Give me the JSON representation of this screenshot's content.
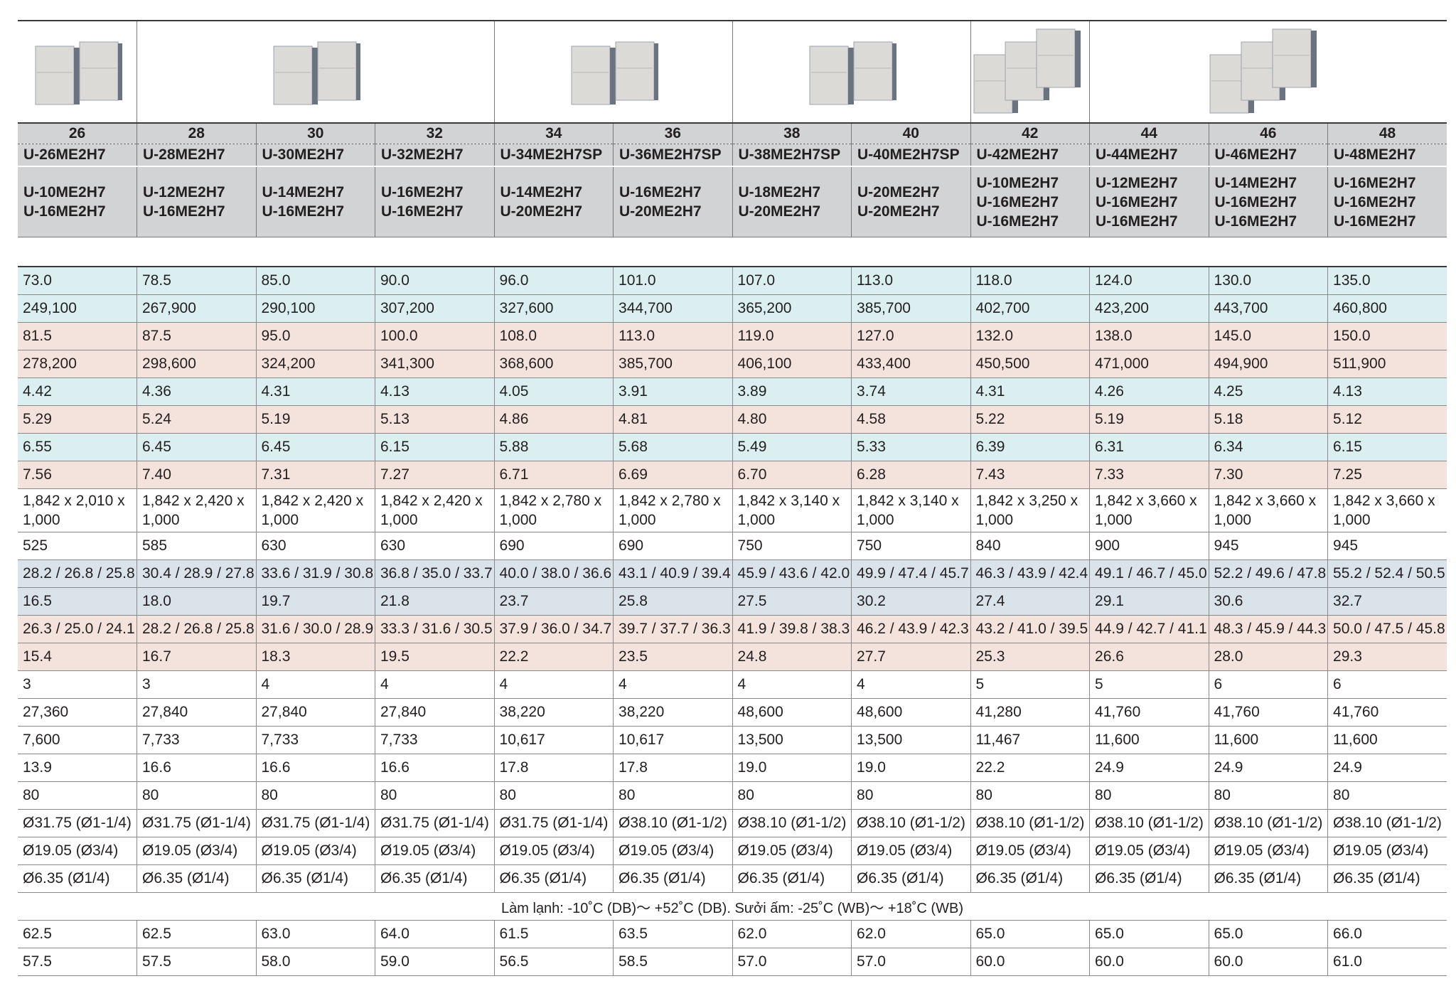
{
  "hp_headers": [
    "26",
    "28",
    "30",
    "32",
    "34",
    "36",
    "38",
    "40",
    "42",
    "44",
    "46",
    "48"
  ],
  "model_names": [
    "U-26ME2H7",
    "U-28ME2H7",
    "U-30ME2H7",
    "U-32ME2H7",
    "U-34ME2H7SP",
    "U-36ME2H7SP",
    "U-38ME2H7SP",
    "U-40ME2H7SP",
    "U-42ME2H7",
    "U-44ME2H7",
    "U-46ME2H7",
    "U-48ME2H7"
  ],
  "combinations": [
    [
      "U-10ME2H7",
      "U-16ME2H7"
    ],
    [
      "U-12ME2H7",
      "U-16ME2H7"
    ],
    [
      "U-14ME2H7",
      "U-16ME2H7"
    ],
    [
      "U-16ME2H7",
      "U-16ME2H7"
    ],
    [
      "U-14ME2H7",
      "U-20ME2H7"
    ],
    [
      "U-16ME2H7",
      "U-20ME2H7"
    ],
    [
      "U-18ME2H7",
      "U-20ME2H7"
    ],
    [
      "U-20ME2H7",
      "U-20ME2H7"
    ],
    [
      "U-10ME2H7",
      "U-16ME2H7",
      "U-16ME2H7"
    ],
    [
      "U-12ME2H7",
      "U-16ME2H7",
      "U-16ME2H7"
    ],
    [
      "U-14ME2H7",
      "U-16ME2H7",
      "U-16ME2H7"
    ],
    [
      "U-16ME2H7",
      "U-16ME2H7",
      "U-16ME2H7"
    ]
  ],
  "image_groups": [
    {
      "span": 1,
      "units": 2
    },
    {
      "span": 3,
      "units": 2
    },
    {
      "span": 2,
      "units": 2
    },
    {
      "span": 2,
      "units": 2
    },
    {
      "span": 1,
      "units": 3
    },
    {
      "span": 3,
      "units": 3
    }
  ],
  "colors": {
    "cooling": "#dbeff0",
    "heating": "#f3e3dc",
    "steel": "#dbe3ea",
    "header": "#d1d3d4",
    "unit_body": "#dcdad6",
    "unit_side": "#6b7280"
  },
  "rows": [
    {
      "style": "cool",
      "values": [
        "73.0",
        "78.5",
        "85.0",
        "90.0",
        "96.0",
        "101.0",
        "107.0",
        "113.0",
        "118.0",
        "124.0",
        "130.0",
        "135.0"
      ]
    },
    {
      "style": "cool",
      "values": [
        "249,100",
        "267,900",
        "290,100",
        "307,200",
        "327,600",
        "344,700",
        "365,200",
        "385,700",
        "402,700",
        "423,200",
        "443,700",
        "460,800"
      ]
    },
    {
      "style": "heat",
      "values": [
        "81.5",
        "87.5",
        "95.0",
        "100.0",
        "108.0",
        "113.0",
        "119.0",
        "127.0",
        "132.0",
        "138.0",
        "145.0",
        "150.0"
      ]
    },
    {
      "style": "heat",
      "values": [
        "278,200",
        "298,600",
        "324,200",
        "341,300",
        "368,600",
        "385,700",
        "406,100",
        "433,400",
        "450,500",
        "471,000",
        "494,900",
        "511,900"
      ]
    },
    {
      "style": "cool",
      "values": [
        "4.42",
        "4.36",
        "4.31",
        "4.13",
        "4.05",
        "3.91",
        "3.89",
        "3.74",
        "4.31",
        "4.26",
        "4.25",
        "4.13"
      ]
    },
    {
      "style": "heat",
      "values": [
        "5.29",
        "5.24",
        "5.19",
        "5.13",
        "4.86",
        "4.81",
        "4.80",
        "4.58",
        "5.22",
        "5.19",
        "5.18",
        "5.12"
      ]
    },
    {
      "style": "cool",
      "values": [
        "6.55",
        "6.45",
        "6.45",
        "6.15",
        "5.88",
        "5.68",
        "5.49",
        "5.33",
        "6.39",
        "6.31",
        "6.34",
        "6.15"
      ]
    },
    {
      "style": "heat",
      "values": [
        "7.56",
        "7.40",
        "7.31",
        "7.27",
        "6.71",
        "6.69",
        "6.70",
        "6.28",
        "7.43",
        "7.33",
        "7.30",
        "7.25"
      ]
    },
    {
      "style": "plain",
      "tall": true,
      "values": [
        "1,842 x 2,010 x 1,000",
        "1,842 x 2,420 x 1,000",
        "1,842 x 2,420 x 1,000",
        "1,842 x 2,420 x 1,000",
        "1,842 x 2,780 x 1,000",
        "1,842 x 2,780 x 1,000",
        "1,842 x 3,140 x 1,000",
        "1,842 x 3,140 x 1,000",
        "1,842 x 3,250 x 1,000",
        "1,842 x 3,660 x 1,000",
        "1,842 x 3,660 x 1,000",
        "1,842 x 3,660 x 1,000"
      ]
    },
    {
      "style": "plain",
      "values": [
        "525",
        "585",
        "630",
        "630",
        "690",
        "690",
        "750",
        "750",
        "840",
        "900",
        "945",
        "945"
      ]
    },
    {
      "style": "steel",
      "values": [
        "28.2 / 26.8 / 25.8",
        "30.4 / 28.9 / 27.8",
        "33.6 / 31.9 / 30.8",
        "36.8 / 35.0 / 33.7",
        "40.0 / 38.0 / 36.6",
        "43.1 / 40.9 / 39.4",
        "45.9 / 43.6 / 42.0",
        "49.9 / 47.4 / 45.7",
        "46.3 / 43.9 / 42.4",
        "49.1 / 46.7 / 45.0",
        "52.2 / 49.6 / 47.8",
        "55.2 / 52.4 / 50.5"
      ]
    },
    {
      "style": "steel",
      "values": [
        "16.5",
        "18.0",
        "19.7",
        "21.8",
        "23.7",
        "25.8",
        "27.5",
        "30.2",
        "27.4",
        "29.1",
        "30.6",
        "32.7"
      ]
    },
    {
      "style": "heat",
      "values": [
        "26.3 / 25.0 / 24.1",
        "28.2 / 26.8 / 25.8",
        "31.6 / 30.0 / 28.9",
        "33.3 / 31.6 / 30.5",
        "37.9 / 36.0 / 34.7",
        "39.7 / 37.7 / 36.3",
        "41.9 / 39.8 / 38.3",
        "46.2 / 43.9 / 42.3",
        "43.2 / 41.0 / 39.5",
        "44.9 / 42.7 / 41.1",
        "48.3 / 45.9 / 44.3",
        "50.0 / 47.5 / 45.8"
      ]
    },
    {
      "style": "heat",
      "values": [
        "15.4",
        "16.7",
        "18.3",
        "19.5",
        "22.2",
        "23.5",
        "24.8",
        "27.7",
        "25.3",
        "26.6",
        "28.0",
        "29.3"
      ]
    },
    {
      "style": "plain",
      "values": [
        "3",
        "3",
        "4",
        "4",
        "4",
        "4",
        "4",
        "4",
        "5",
        "5",
        "6",
        "6"
      ]
    },
    {
      "style": "plain",
      "values": [
        "27,360",
        "27,840",
        "27,840",
        "27,840",
        "38,220",
        "38,220",
        "48,600",
        "48,600",
        "41,280",
        "41,760",
        "41,760",
        "41,760"
      ]
    },
    {
      "style": "plain",
      "values": [
        "7,600",
        "7,733",
        "7,733",
        "7,733",
        "10,617",
        "10,617",
        "13,500",
        "13,500",
        "11,467",
        "11,600",
        "11,600",
        "11,600"
      ]
    },
    {
      "style": "plain",
      "values": [
        "13.9",
        "16.6",
        "16.6",
        "16.6",
        "17.8",
        "17.8",
        "19.0",
        "19.0",
        "22.2",
        "24.9",
        "24.9",
        "24.9"
      ]
    },
    {
      "style": "plain",
      "values": [
        "80",
        "80",
        "80",
        "80",
        "80",
        "80",
        "80",
        "80",
        "80",
        "80",
        "80",
        "80"
      ]
    },
    {
      "style": "plain",
      "values": [
        "Ø31.75 (Ø1-1/4)",
        "Ø31.75 (Ø1-1/4)",
        "Ø31.75 (Ø1-1/4)",
        "Ø31.75 (Ø1-1/4)",
        "Ø31.75 (Ø1-1/4)",
        "Ø38.10 (Ø1-1/2)",
        "Ø38.10 (Ø1-1/2)",
        "Ø38.10 (Ø1-1/2)",
        "Ø38.10 (Ø1-1/2)",
        "Ø38.10 (Ø1-1/2)",
        "Ø38.10 (Ø1-1/2)",
        "Ø38.10 (Ø1-1/2)"
      ]
    },
    {
      "style": "plain",
      "values": [
        "Ø19.05 (Ø3/4)",
        "Ø19.05 (Ø3/4)",
        "Ø19.05 (Ø3/4)",
        "Ø19.05 (Ø3/4)",
        "Ø19.05 (Ø3/4)",
        "Ø19.05 (Ø3/4)",
        "Ø19.05 (Ø3/4)",
        "Ø19.05 (Ø3/4)",
        "Ø19.05 (Ø3/4)",
        "Ø19.05 (Ø3/4)",
        "Ø19.05 (Ø3/4)",
        "Ø19.05 (Ø3/4)"
      ]
    },
    {
      "style": "plain",
      "values": [
        "Ø6.35 (Ø1/4)",
        "Ø6.35 (Ø1/4)",
        "Ø6.35 (Ø1/4)",
        "Ø6.35 (Ø1/4)",
        "Ø6.35 (Ø1/4)",
        "Ø6.35 (Ø1/4)",
        "Ø6.35 (Ø1/4)",
        "Ø6.35 (Ø1/4)",
        "Ø6.35 (Ø1/4)",
        "Ø6.35 (Ø1/4)",
        "Ø6.35 (Ø1/4)",
        "Ø6.35 (Ø1/4)"
      ]
    },
    {
      "style": "note",
      "text": "Làm lạnh: -10˚C (DB)～ +52˚C (DB). Sưởi ấm: -25˚C (WB)～ +18˚C (WB)"
    },
    {
      "style": "plain",
      "values": [
        "62.5",
        "62.5",
        "63.0",
        "64.0",
        "61.5",
        "63.5",
        "62.0",
        "62.0",
        "65.0",
        "65.0",
        "65.0",
        "66.0"
      ]
    },
    {
      "style": "plain",
      "values": [
        "57.5",
        "57.5",
        "58.0",
        "59.0",
        "56.5",
        "58.5",
        "57.0",
        "57.0",
        "60.0",
        "60.0",
        "60.0",
        "61.0"
      ]
    }
  ]
}
